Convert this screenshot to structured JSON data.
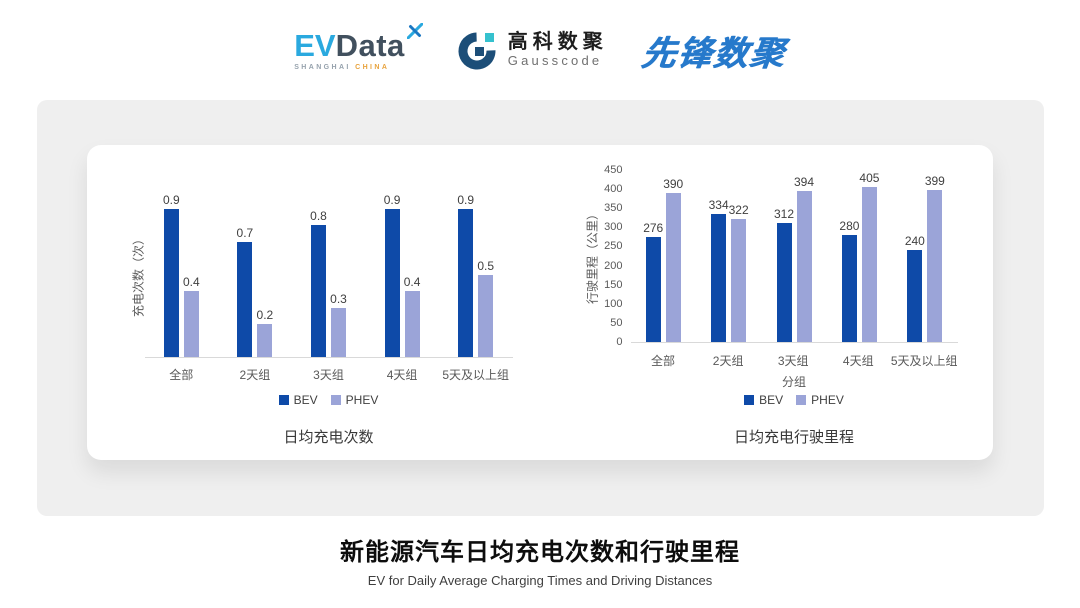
{
  "header": {
    "evdata": {
      "ev": "EV",
      "data": "Data",
      "sub_left": "SHANGHAI",
      "sub_right": "CHINA"
    },
    "gausscode": {
      "cn": "高科数聚",
      "en": "Gausscode"
    },
    "xianfeng": "先锋数聚"
  },
  "colors": {
    "bev": "#0E4AA8",
    "phev": "#9BA4D8",
    "axis_line": "#D9D9D9",
    "tick_text": "#595959",
    "label_text": "#404040",
    "panel_bg": "#EFEFEF",
    "card_bg": "#FFFFFF"
  },
  "chart_data": [
    {
      "type": "bar",
      "title": "日均充电次数",
      "ylabel": "充电次数（次）",
      "xlabel": "",
      "categories": [
        "全部",
        "2天组",
        "3天组",
        "4天组",
        "5天及以上组"
      ],
      "series": [
        {
          "name": "BEV",
          "color": "#0E4AA8",
          "values": [
            0.9,
            0.7,
            0.8,
            0.9,
            0.9
          ]
        },
        {
          "name": "PHEV",
          "color": "#9BA4D8",
          "values": [
            0.4,
            0.2,
            0.3,
            0.4,
            0.5
          ]
        }
      ],
      "ylim": [
        0,
        1.0
      ],
      "yticks": [],
      "grid": false,
      "legend": [
        "BEV",
        "PHEV"
      ],
      "legend_position": "bottom"
    },
    {
      "type": "bar",
      "title": "日均充电行驶里程",
      "ylabel": "行驶里程（公里）",
      "xlabel": "分组",
      "categories": [
        "全部",
        "2天组",
        "3天组",
        "4天组",
        "5天及以上组"
      ],
      "series": [
        {
          "name": "BEV",
          "color": "#0E4AA8",
          "values": [
            276,
            334,
            312,
            280,
            240
          ]
        },
        {
          "name": "PHEV",
          "color": "#9BA4D8",
          "values": [
            390,
            322,
            394,
            405,
            399
          ]
        }
      ],
      "ylim": [
        0,
        450
      ],
      "yticks": [
        0,
        50,
        100,
        150,
        200,
        250,
        300,
        350,
        400,
        450
      ],
      "grid": false,
      "legend": [
        "BEV",
        "PHEV"
      ],
      "legend_position": "bottom"
    }
  ],
  "footer": {
    "title": "新能源汽车日均充电次数和行驶里程",
    "subtitle": "EV for Daily Average Charging Times and Driving Distances"
  }
}
